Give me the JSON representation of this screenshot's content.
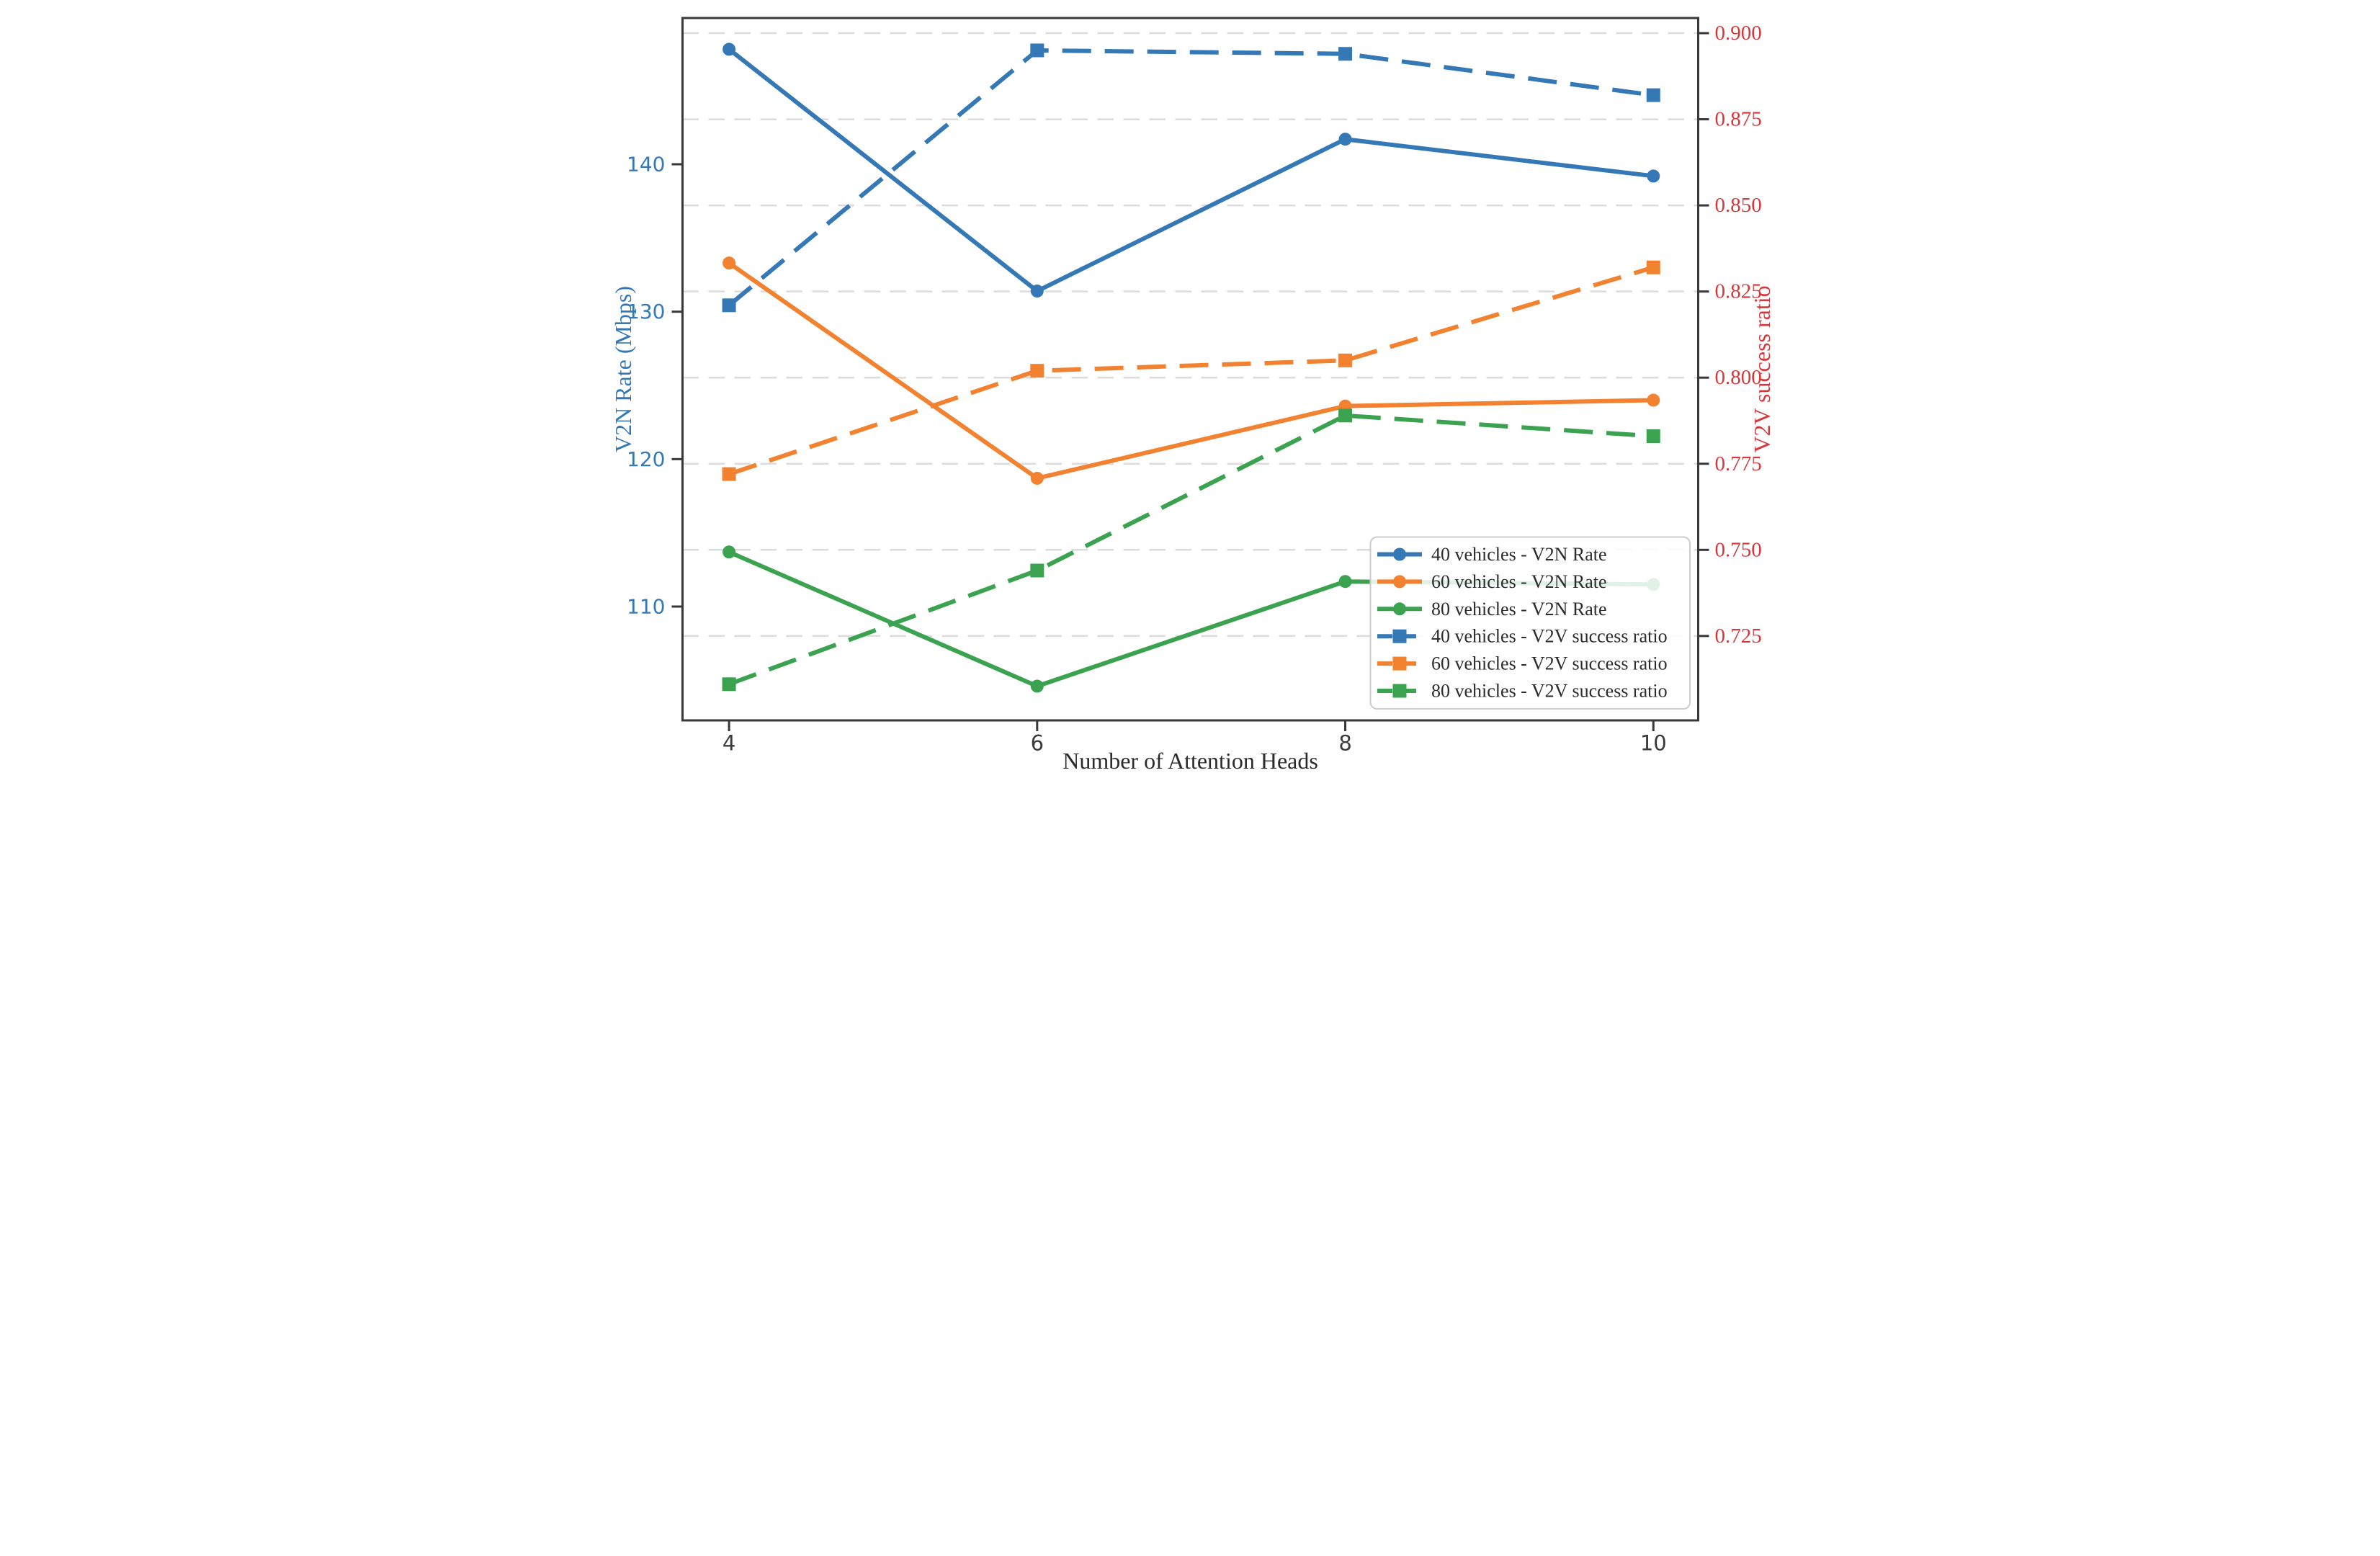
{
  "figure": {
    "background": "#ffffff",
    "accent_colors": {
      "blue": "#3578b6",
      "orange": "#f28130",
      "green": "#3ba350",
      "red_axis": "#d6373a",
      "grid": "#dcdcdc",
      "spine": "#383838",
      "tick_text_dark": "#3a3a3a",
      "legend_text": "#2b2b2b",
      "legend_border": "#cccccc"
    }
  },
  "chart_data": {
    "type": "line",
    "title": "",
    "xlabel": "Number of Attention Heads",
    "ylabel_left": "V2N Rate (Mbps)",
    "ylabel_right": "V2V success ratio",
    "x": [
      4,
      6,
      8,
      10
    ],
    "xtick_labels": [
      "4",
      "6",
      "8",
      "10"
    ],
    "xlim": [
      3.698,
      10.291
    ],
    "ylim_left": [
      102.28,
      149.92
    ],
    "ylim_right": [
      0.7005,
      0.9044
    ],
    "yticks_left": [
      110,
      120,
      130,
      140
    ],
    "ytick_labels_left": [
      "110",
      "120",
      "130",
      "140"
    ],
    "yticks_right": [
      0.725,
      0.75,
      0.775,
      0.8,
      0.825,
      0.85,
      0.875,
      0.9
    ],
    "ytick_labels_right": [
      "0.725",
      "0.750",
      "0.775",
      "0.800",
      "0.825",
      "0.850",
      "0.875",
      "0.900"
    ],
    "grid": "horizontal dashed gridlines at right-axis ticks",
    "legend_position": "lower right",
    "series": [
      {
        "name": "40 vehicles - V2N Rate",
        "axis": "left",
        "line_style": "solid",
        "marker": "circle",
        "color": "#3578b6",
        "values": [
          147.8,
          131.4,
          141.7,
          139.2
        ]
      },
      {
        "name": "60 vehicles - V2N Rate",
        "axis": "left",
        "line_style": "solid",
        "marker": "circle",
        "color": "#f28130",
        "values": [
          133.3,
          118.7,
          123.6,
          124.0
        ]
      },
      {
        "name": "80 vehicles - V2N Rate",
        "axis": "left",
        "line_style": "solid",
        "marker": "circle",
        "color": "#3ba350",
        "values": [
          113.7,
          104.6,
          111.7,
          111.5
        ]
      },
      {
        "name": "40 vehicles - V2V success ratio",
        "axis": "right",
        "line_style": "dashed",
        "marker": "square",
        "color": "#3578b6",
        "values": [
          0.821,
          0.895,
          0.894,
          0.882
        ]
      },
      {
        "name": "60 vehicles - V2V success ratio",
        "axis": "right",
        "line_style": "dashed",
        "marker": "square",
        "color": "#f28130",
        "values": [
          0.772,
          0.802,
          0.805,
          0.832
        ]
      },
      {
        "name": "80 vehicles - V2V success ratio",
        "axis": "right",
        "line_style": "dashed",
        "marker": "square",
        "color": "#3ba350",
        "values": [
          0.711,
          0.744,
          0.789,
          0.783
        ]
      }
    ]
  }
}
